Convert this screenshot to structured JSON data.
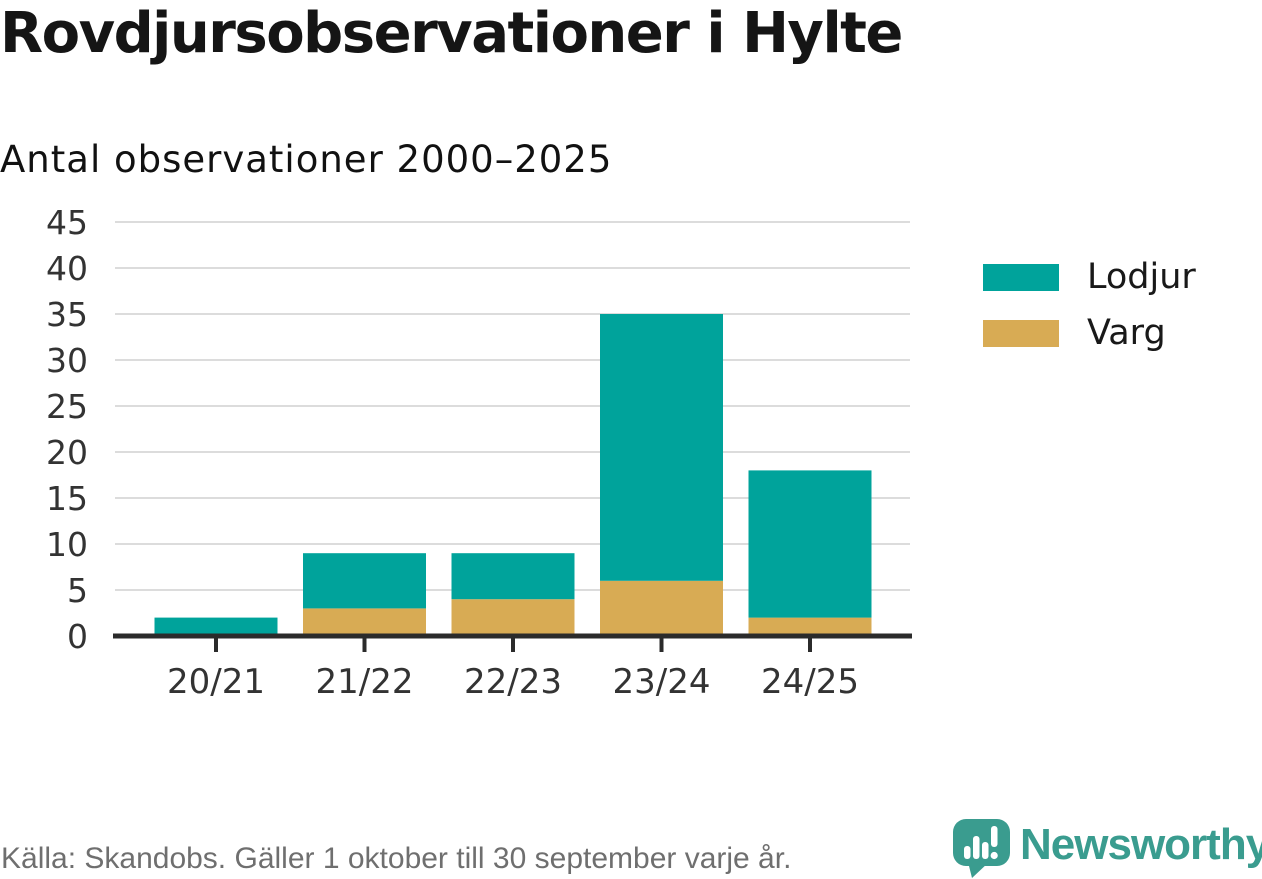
{
  "header": {
    "title": "Rovdjursobservationer i Hylte",
    "subtitle": "Antal observationer 2000–2025"
  },
  "chart_data": {
    "type": "bar",
    "stacked": true,
    "title": "Rovdjursobservationer i Hylte",
    "subtitle": "Antal observationer 2000–2025",
    "categories": [
      "20/21",
      "21/22",
      "22/23",
      "23/24",
      "24/25"
    ],
    "series": [
      {
        "name": "Lodjur",
        "color": "#00A39B",
        "values": [
          2,
          6,
          5,
          29,
          16
        ]
      },
      {
        "name": "Varg",
        "color": "#D8AB54",
        "values": [
          0,
          3,
          4,
          6,
          2
        ]
      }
    ],
    "stack_bottom_to_top": [
      "Varg",
      "Lodjur"
    ],
    "totals": [
      2,
      9,
      9,
      35,
      18
    ],
    "xlabel": "",
    "ylabel": "",
    "ylim": [
      0,
      45
    ],
    "ytick_step": 5,
    "grid": "horizontal-only",
    "legend_position": "right"
  },
  "legend": {
    "items": [
      {
        "label": "Lodjur",
        "color": "#00A39B"
      },
      {
        "label": "Varg",
        "color": "#D8AB54"
      }
    ]
  },
  "footer": {
    "source": "Källa: Skandobs. Gäller 1 oktober till 30 september varje år.",
    "brand": "Newsworthy"
  },
  "colors": {
    "lodjur_teal": "#00A39B",
    "varg_gold": "#D8AB54",
    "axis_line": "#2B2B2B",
    "gridline": "#DCDCDC",
    "axis_text": "#333333",
    "brand_teal": "#3A9C8F",
    "source_text": "#6F6F6F"
  }
}
